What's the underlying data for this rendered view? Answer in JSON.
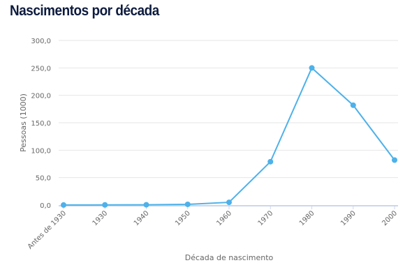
{
  "title": "Nascimentos por década",
  "chart_data": {
    "type": "line",
    "title": "Nascimentos por década",
    "xlabel": "Década de nascimento",
    "ylabel": "Pessoas (1000)",
    "categories": [
      "Antes de 1930",
      "1930",
      "1940",
      "1950",
      "1960",
      "1970",
      "1980",
      "1990",
      "2000"
    ],
    "series": [
      {
        "name": "Pessoas (1000)",
        "values": [
          0.1,
          0.3,
          0.5,
          1.3,
          5.0,
          79.0,
          250.0,
          182.0,
          82.0
        ]
      }
    ],
    "yticks": [
      "0,0",
      "50,0",
      "100,0",
      "150,0",
      "200,0",
      "250,0",
      "300,0"
    ],
    "ylim": [
      0,
      300
    ],
    "grid": true,
    "legend": false,
    "color": "#4db1ea"
  }
}
